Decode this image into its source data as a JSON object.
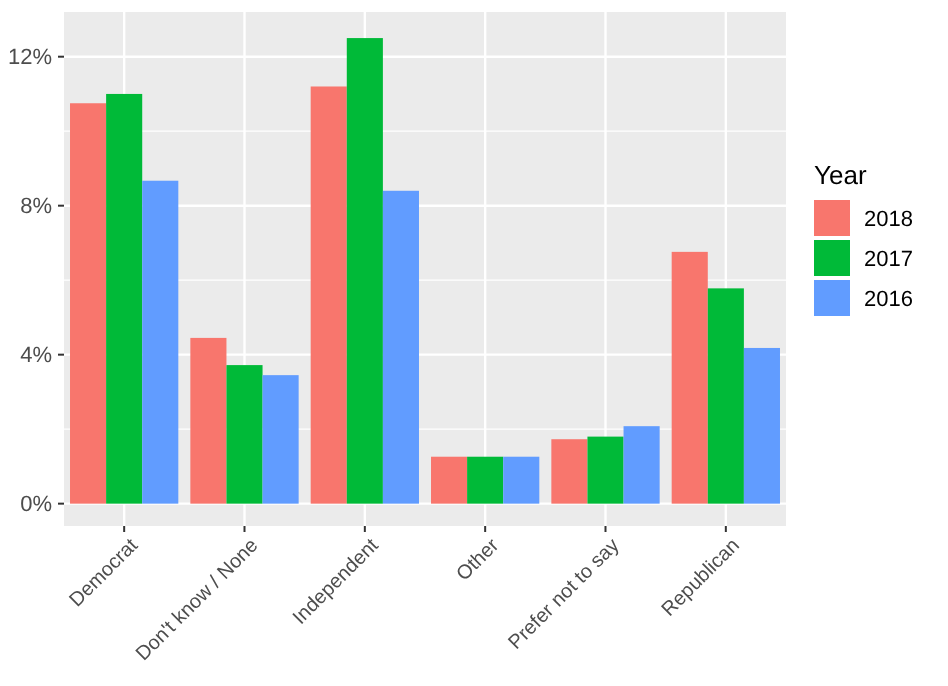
{
  "chart_data": {
    "type": "bar",
    "categories": [
      "Democrat",
      "Don't know / None",
      "Independent",
      "Other",
      "Prefer not to say",
      "Republican"
    ],
    "series": [
      {
        "name": "2018",
        "color": "#f8766d",
        "values": [
          10.75,
          4.45,
          11.2,
          1.26,
          1.73,
          6.76
        ]
      },
      {
        "name": "2017",
        "color": "#00ba38",
        "values": [
          11.0,
          3.72,
          12.5,
          1.26,
          1.8,
          5.78
        ]
      },
      {
        "name": "2016",
        "color": "#619cff",
        "values": [
          8.67,
          3.45,
          8.4,
          1.26,
          2.08,
          4.18
        ]
      }
    ],
    "ylim": [
      -0.6,
      13.2
    ],
    "yticks": [
      {
        "value": 0,
        "label": "0%"
      },
      {
        "value": 4,
        "label": "4%"
      },
      {
        "value": 8,
        "label": "8%"
      },
      {
        "value": 12,
        "label": "12%"
      }
    ],
    "legend_title": "Year",
    "legend": "right",
    "grid": true
  }
}
